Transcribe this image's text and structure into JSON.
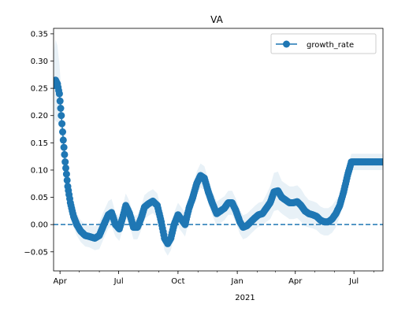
{
  "chart_data": {
    "type": "line",
    "title": "VA",
    "xlabel": "",
    "ylabel": "",
    "year_label": "2021",
    "x_ticks": [
      "Apr",
      "Jul",
      "Oct",
      "Jan",
      "Apr",
      "Jul"
    ],
    "x_tick_dates": [
      "2020-04-01",
      "2020-07-01",
      "2020-10-01",
      "2021-01-01",
      "2021-04-01",
      "2021-07-01"
    ],
    "xlim": [
      "2020-03-22",
      "2021-08-15"
    ],
    "ylim": [
      -0.085,
      0.36
    ],
    "y_ticks": [
      -0.05,
      0.0,
      0.05,
      0.1,
      0.15,
      0.2,
      0.25,
      0.3,
      0.35
    ],
    "y_tick_labels": [
      "−0.05",
      "0.00",
      "0.05",
      "0.10",
      "0.15",
      "0.20",
      "0.25",
      "0.30",
      "0.35"
    ],
    "reference_line": 0.0,
    "legend": {
      "label": "growth_rate",
      "position": "upper right"
    },
    "colors": {
      "line": "#1f77b4",
      "band": "#1f77b4"
    },
    "band_opacity": 0.1,
    "series": [
      {
        "name": "growth_rate",
        "x": [
          "2020-03-22",
          "2020-03-25",
          "2020-03-28",
          "2020-03-31",
          "2020-04-03",
          "2020-04-06",
          "2020-04-09",
          "2020-04-13",
          "2020-04-17",
          "2020-04-22",
          "2020-04-27",
          "2020-05-03",
          "2020-05-10",
          "2020-05-17",
          "2020-05-25",
          "2020-06-01",
          "2020-06-08",
          "2020-06-15",
          "2020-06-20",
          "2020-06-26",
          "2020-07-02",
          "2020-07-07",
          "2020-07-12",
          "2020-07-18",
          "2020-07-24",
          "2020-07-30",
          "2020-08-05",
          "2020-08-10",
          "2020-08-16",
          "2020-08-23",
          "2020-08-30",
          "2020-09-05",
          "2020-09-10",
          "2020-09-15",
          "2020-09-20",
          "2020-09-25",
          "2020-10-01",
          "2020-10-06",
          "2020-10-12",
          "2020-10-18",
          "2020-10-24",
          "2020-10-30",
          "2020-11-05",
          "2020-11-11",
          "2020-11-17",
          "2020-11-23",
          "2020-11-30",
          "2020-12-06",
          "2020-12-12",
          "2020-12-18",
          "2020-12-24",
          "2020-12-30",
          "2021-01-05",
          "2021-01-10",
          "2021-01-16",
          "2021-01-22",
          "2021-01-28",
          "2021-02-03",
          "2021-02-09",
          "2021-02-15",
          "2021-02-21",
          "2021-02-27",
          "2021-03-05",
          "2021-03-11",
          "2021-03-17",
          "2021-03-23",
          "2021-03-29",
          "2021-04-04",
          "2021-04-10",
          "2021-04-16",
          "2021-04-22",
          "2021-04-28",
          "2021-05-04",
          "2021-05-10",
          "2021-05-16",
          "2021-05-22",
          "2021-05-28",
          "2021-06-03",
          "2021-06-09",
          "2021-06-15",
          "2021-06-21",
          "2021-06-27",
          "2021-07-03",
          "2021-07-08",
          "2021-07-13",
          "2021-07-20",
          "2021-07-28",
          "2021-08-05",
          "2021-08-15"
        ],
        "values": [
          0.255,
          0.265,
          0.258,
          0.24,
          0.2,
          0.155,
          0.115,
          0.07,
          0.04,
          0.015,
          0.0,
          -0.012,
          -0.02,
          -0.022,
          -0.025,
          -0.02,
          0.0,
          0.018,
          0.022,
          0.0,
          -0.008,
          0.012,
          0.035,
          0.02,
          -0.005,
          -0.005,
          0.012,
          0.032,
          0.038,
          0.043,
          0.035,
          0.005,
          -0.025,
          -0.035,
          -0.025,
          0.0,
          0.018,
          0.01,
          0.0,
          0.03,
          0.05,
          0.075,
          0.09,
          0.085,
          0.06,
          0.04,
          0.02,
          0.025,
          0.03,
          0.04,
          0.04,
          0.025,
          0.005,
          -0.005,
          -0.002,
          0.005,
          0.012,
          0.018,
          0.02,
          0.03,
          0.04,
          0.06,
          0.062,
          0.05,
          0.045,
          0.04,
          0.04,
          0.042,
          0.035,
          0.025,
          0.02,
          0.018,
          0.015,
          0.008,
          0.005,
          0.005,
          0.01,
          0.02,
          0.035,
          0.06,
          0.09,
          0.115,
          0.115,
          0.115,
          0.115,
          0.115,
          0.115,
          0.115,
          0.115
        ],
        "band_halfwidth": [
          0.06,
          0.075,
          0.07,
          0.055,
          0.045,
          0.038,
          0.032,
          0.025,
          0.022,
          0.02,
          0.02,
          0.02,
          0.02,
          0.02,
          0.022,
          0.025,
          0.025,
          0.025,
          0.025,
          0.022,
          0.022,
          0.022,
          0.022,
          0.022,
          0.022,
          0.022,
          0.022,
          0.022,
          0.022,
          0.022,
          0.022,
          0.022,
          0.022,
          0.022,
          0.022,
          0.022,
          0.022,
          0.022,
          0.022,
          0.022,
          0.022,
          0.022,
          0.022,
          0.022,
          0.022,
          0.022,
          0.022,
          0.022,
          0.022,
          0.022,
          0.022,
          0.022,
          0.022,
          0.022,
          0.022,
          0.022,
          0.022,
          0.022,
          0.022,
          0.025,
          0.03,
          0.035,
          0.035,
          0.03,
          0.03,
          0.03,
          0.03,
          0.03,
          0.03,
          0.028,
          0.025,
          0.025,
          0.025,
          0.025,
          0.025,
          0.025,
          0.025,
          0.025,
          0.02,
          0.015,
          0.015,
          0.015,
          0.015,
          0.015,
          0.015,
          0.015,
          0.015,
          0.015,
          0.015
        ]
      }
    ]
  }
}
